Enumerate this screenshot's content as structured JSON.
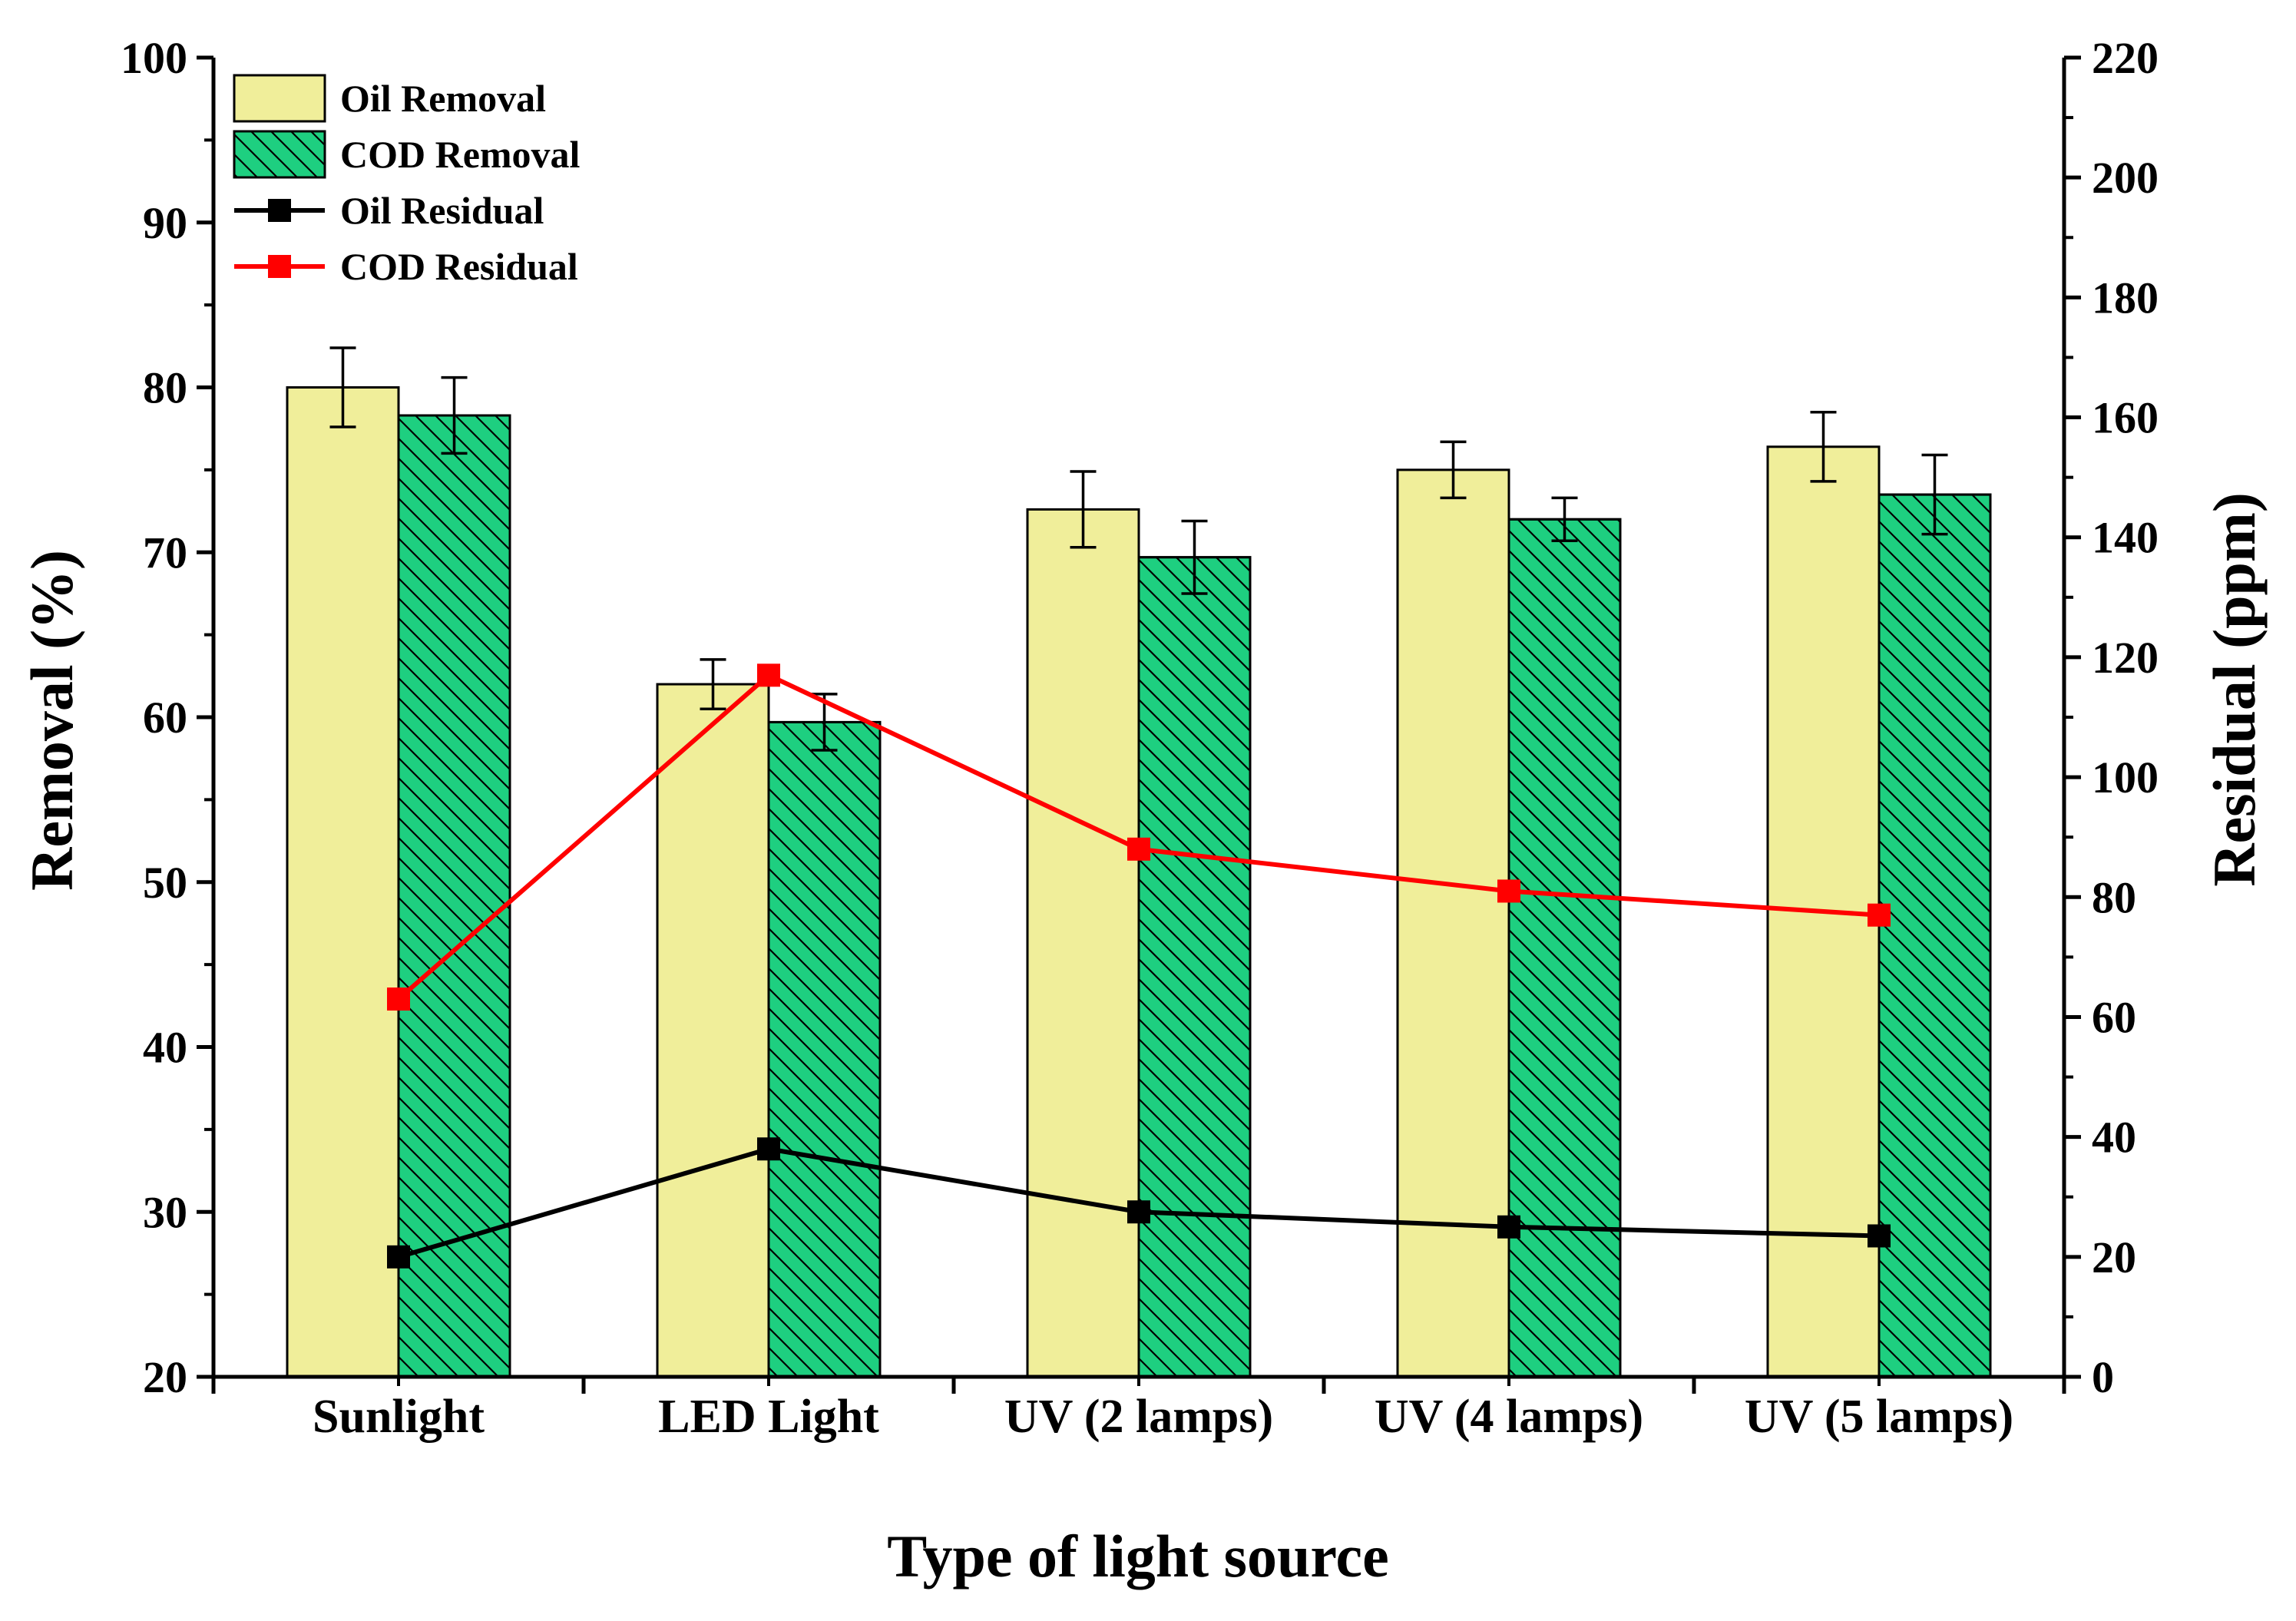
{
  "chart_data": {
    "type": "bar",
    "title": "",
    "xlabel": "Type of light source",
    "ylabel": "Removal (%)",
    "y2label": "Residual (ppm)",
    "ylim": [
      20,
      100
    ],
    "y2lim": [
      0,
      220
    ],
    "yticks": [
      20,
      30,
      40,
      50,
      60,
      70,
      80,
      90,
      100
    ],
    "y2ticks": [
      0,
      20,
      40,
      60,
      80,
      100,
      120,
      140,
      160,
      180,
      200,
      220
    ],
    "categories": [
      "Sunlight",
      "LED Light",
      "UV (2 lamps)",
      "UV (4 lamps)",
      "UV (5 lamps)"
    ],
    "legend_position": "top-left",
    "series": [
      {
        "name": "Oil Removal",
        "kind": "bar",
        "axis": "left",
        "color": "#f0ee9a",
        "values": [
          80.0,
          62.0,
          72.6,
          75.0,
          76.4
        ],
        "errors": [
          2.4,
          1.5,
          2.3,
          1.7,
          2.1
        ]
      },
      {
        "name": "COD Removal",
        "kind": "bar",
        "axis": "left",
        "color": "#1ecf80",
        "hatch": true,
        "values": [
          78.3,
          59.7,
          69.7,
          72.0,
          73.5
        ],
        "errors": [
          2.3,
          1.7,
          2.2,
          1.3,
          2.4
        ]
      },
      {
        "name": "Oil Residual",
        "kind": "line",
        "axis": "right",
        "color": "#000000",
        "values": [
          20,
          38,
          27.5,
          25,
          23.5
        ]
      },
      {
        "name": "COD Residual",
        "kind": "line",
        "axis": "right",
        "color": "#ff0000",
        "values": [
          63,
          117,
          88,
          81,
          77
        ]
      }
    ]
  }
}
